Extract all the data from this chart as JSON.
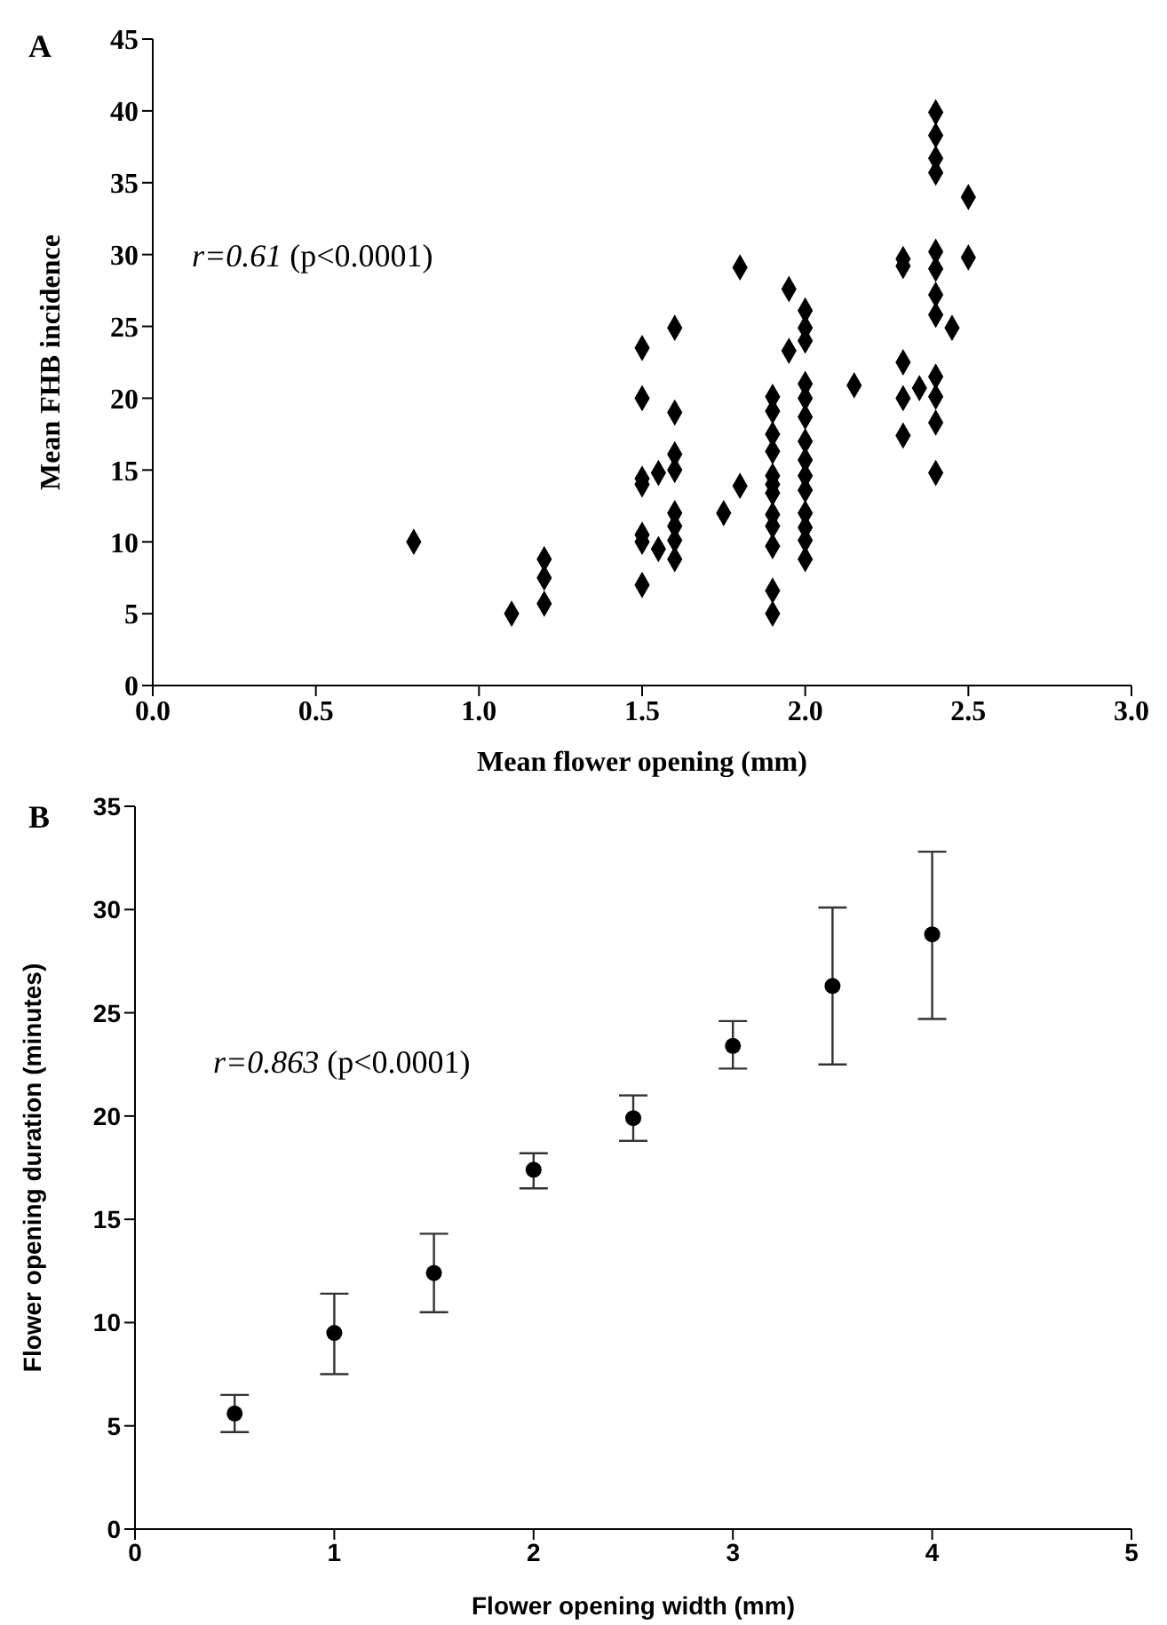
{
  "chart_data": [
    {
      "type": "scatter",
      "xlabel": "Mean flower opening (mm)",
      "ylabel": "Mean FHB incidence",
      "annotations": [
        "A",
        "r=0.61 (p<0.0001)"
      ],
      "marker": "diamond",
      "grid": false,
      "legend": false,
      "xlim": [
        0,
        3
      ],
      "xticks": [
        {
          "value": 0,
          "label": "0.0"
        },
        0.5,
        {
          "value": 1,
          "label": "1.0"
        },
        1.5,
        {
          "value": 2,
          "label": "2.0"
        },
        2.5,
        {
          "value": 3,
          "label": "3.0"
        }
      ],
      "ylim": [
        0,
        45
      ],
      "yticks": [
        0,
        5,
        10,
        15,
        20,
        25,
        30,
        35,
        40,
        45
      ],
      "series": [
        {
          "color": "#000000",
          "x": [
            0.8,
            1.1,
            1.2,
            1.2,
            1.2,
            1.5,
            1.5,
            1.5,
            1.5,
            1.5,
            1.5,
            1.5,
            1.55,
            1.55,
            1.6,
            1.6,
            1.6,
            1.6,
            1.6,
            1.6,
            1.6,
            1.6,
            1.75,
            1.8,
            1.8,
            1.9,
            1.9,
            1.9,
            1.9,
            1.9,
            1.9,
            1.9,
            1.9,
            1.9,
            1.9,
            1.9,
            1.9,
            1.95,
            1.95,
            2.0,
            2.0,
            2.0,
            2.0,
            2.0,
            2.0,
            2.0,
            2.0,
            2.0,
            2.0,
            2.0,
            2.0,
            2.0,
            2.0,
            2.15,
            2.3,
            2.3,
            2.3,
            2.3,
            2.3,
            2.35,
            2.4,
            2.4,
            2.4,
            2.4,
            2.4,
            2.4,
            2.4,
            2.4,
            2.4,
            2.4,
            2.4,
            2.4,
            2.45,
            2.5,
            2.5
          ],
          "values": [
            10.0,
            5.0,
            8.8,
            7.5,
            5.7,
            23.5,
            20,
            14.4,
            14,
            10.5,
            10,
            7,
            14.8,
            9.5,
            24.9,
            19,
            16.1,
            15,
            12,
            11.1,
            10.1,
            8.8,
            12,
            29.1,
            13.9,
            20.1,
            19.1,
            17.5,
            16.3,
            14.6,
            14,
            13.4,
            11.9,
            11.1,
            9.7,
            6.6,
            5,
            27.6,
            23.3,
            26.1,
            24.9,
            24,
            21,
            20,
            18.7,
            17,
            15.7,
            14.6,
            13.6,
            12,
            11,
            10.1,
            8.8,
            20.9,
            29.7,
            29.2,
            22.5,
            20,
            17.4,
            20.7,
            39.9,
            38.3,
            36.7,
            35.7,
            30.2,
            29,
            27.2,
            25.8,
            21.5,
            20.1,
            18.3,
            14.8,
            24.9,
            34,
            29.8
          ]
        }
      ]
    },
    {
      "type": "scatter",
      "xlabel": "Flower opening width (mm)",
      "ylabel": "Flower opening duration (minutes)",
      "annotations": [
        "B",
        "r=0.863 (p<0.0001)"
      ],
      "marker": "circle",
      "grid": false,
      "legend": false,
      "xlim": [
        0,
        5
      ],
      "xticks": [
        0,
        1,
        2,
        3,
        4,
        5
      ],
      "ylim": [
        0,
        35
      ],
      "yticks": [
        0,
        5,
        10,
        15,
        20,
        25,
        30,
        35
      ],
      "series": [
        {
          "color": "#000000",
          "x": [
            0.5,
            1,
            1.5,
            2,
            2.5,
            3,
            3.5,
            4
          ],
          "values": [
            5.6,
            9.5,
            12.4,
            17.4,
            19.9,
            23.4,
            26.3,
            28.8
          ],
          "errors": [
            [
              4.7,
              6.5
            ],
            [
              7.5,
              11.4
            ],
            [
              10.5,
              14.3
            ],
            [
              16.5,
              18.2
            ],
            [
              18.8,
              21.0
            ],
            [
              22.3,
              24.6
            ],
            [
              22.5,
              30.1
            ],
            [
              24.7,
              32.8
            ]
          ]
        }
      ]
    }
  ]
}
